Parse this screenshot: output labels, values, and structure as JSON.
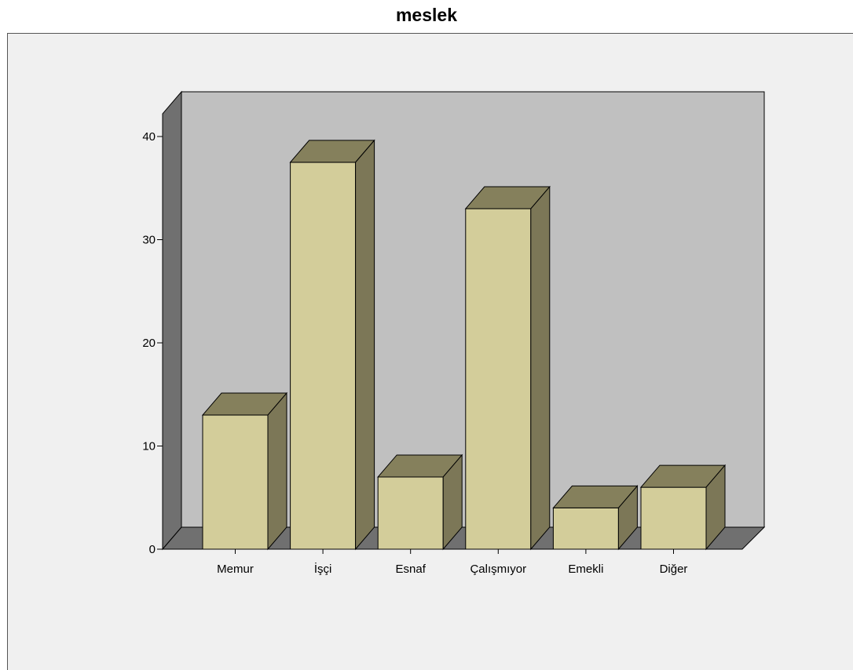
{
  "chart_data": {
    "type": "bar",
    "style": "3d",
    "title": "meslek",
    "xlabel": "",
    "ylabel": "",
    "categories": [
      "Memur",
      "İşçi",
      "Esnaf",
      "Çalışmıyor",
      "Emekli",
      "Diğer"
    ],
    "values": [
      13,
      37.5,
      7,
      33,
      4,
      6
    ],
    "ylim": [
      0,
      40
    ],
    "yticks": [
      0,
      10,
      20,
      30,
      40
    ],
    "grid": false,
    "legend": "none",
    "colors": {
      "bar_front": "#d3cd9a",
      "bar_top": "#85805c",
      "bar_side": "#7c7757",
      "back_wall": "#c0c0c0",
      "side_wall": "#707070",
      "floor": "#707070",
      "plot_background": "#f0f0f0"
    }
  }
}
